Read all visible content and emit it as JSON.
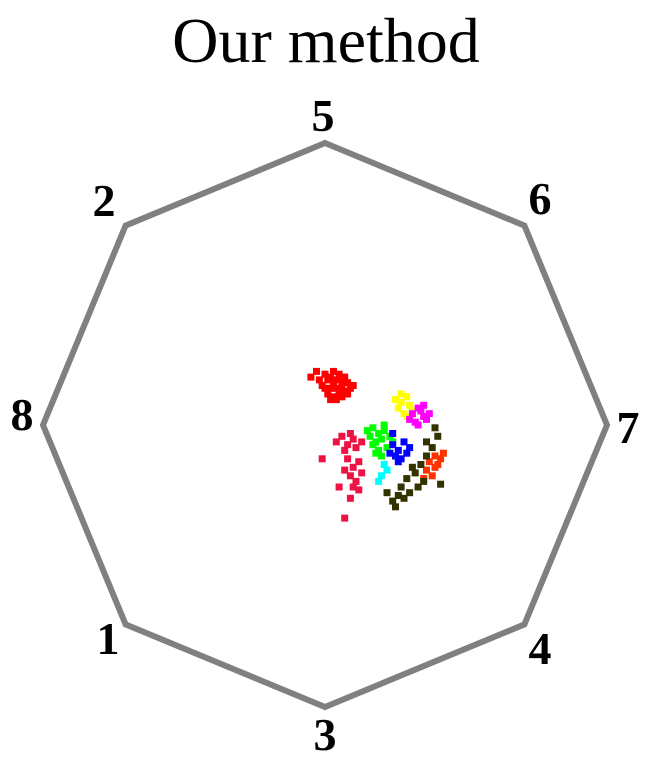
{
  "chart_data": {
    "type": "scatter",
    "title": "Our method",
    "polygon_labels": [
      "5",
      "6",
      "7",
      "4",
      "3",
      "1",
      "8",
      "2"
    ],
    "polygon_color": "#808080",
    "series": [
      {
        "color": "#ff0000",
        "points": [
          [
            0.02,
            0.13
          ],
          [
            0.03,
            0.15
          ],
          [
            0.05,
            0.12
          ],
          [
            0.01,
            0.11
          ],
          [
            0.04,
            0.16
          ],
          [
            0.06,
            0.14
          ],
          [
            0.0,
            0.13
          ],
          [
            0.03,
            0.1
          ],
          [
            0.07,
            0.12
          ],
          [
            0.02,
            0.17
          ],
          [
            -0.01,
            0.14
          ],
          [
            0.05,
            0.18
          ],
          [
            0.08,
            0.15
          ],
          [
            0.04,
            0.09
          ],
          [
            0.06,
            0.1
          ],
          [
            0.01,
            0.16
          ],
          [
            0.09,
            0.13
          ],
          [
            0.03,
            0.19
          ],
          [
            -0.02,
            0.16
          ],
          [
            0.07,
            0.17
          ],
          [
            0.05,
            0.11
          ],
          [
            0.1,
            0.14
          ],
          [
            0.02,
            0.09
          ],
          [
            0.06,
            0.16
          ],
          [
            -0.03,
            0.19
          ],
          [
            -0.05,
            0.17
          ],
          [
            0.04,
            0.13
          ],
          [
            0.08,
            0.11
          ],
          [
            0.0,
            0.18
          ],
          [
            0.03,
            0.14
          ]
        ]
      },
      {
        "color": "#ffff00",
        "points": [
          [
            0.27,
            0.08
          ],
          [
            0.29,
            0.1
          ],
          [
            0.26,
            0.06
          ],
          [
            0.3,
            0.07
          ],
          [
            0.28,
            0.04
          ],
          [
            0.25,
            0.09
          ],
          [
            0.31,
            0.05
          ],
          [
            0.27,
            0.11
          ],
          [
            0.29,
            0.03
          ]
        ]
      },
      {
        "color": "#ff00ff",
        "points": [
          [
            0.31,
            0.04
          ],
          [
            0.33,
            0.06
          ],
          [
            0.35,
            0.03
          ],
          [
            0.32,
            0.01
          ],
          [
            0.34,
            0.05
          ],
          [
            0.36,
            0.02
          ],
          [
            0.3,
            0.02
          ],
          [
            0.33,
            0.0
          ],
          [
            0.35,
            0.07
          ],
          [
            0.37,
            0.04
          ]
        ]
      },
      {
        "color": "#00ff00",
        "points": [
          [
            0.17,
            -0.01
          ],
          [
            0.19,
            -0.03
          ],
          [
            0.21,
            -0.02
          ],
          [
            0.18,
            -0.06
          ],
          [
            0.2,
            -0.05
          ],
          [
            0.22,
            -0.08
          ],
          [
            0.16,
            -0.04
          ],
          [
            0.19,
            -0.09
          ],
          [
            0.23,
            -0.04
          ],
          [
            0.17,
            -0.07
          ],
          [
            0.21,
            0.0
          ],
          [
            0.15,
            -0.02
          ],
          [
            0.24,
            -0.06
          ],
          [
            0.2,
            -0.11
          ],
          [
            0.18,
            -0.1
          ]
        ]
      },
      {
        "color": "#0000ff",
        "points": [
          [
            0.24,
            -0.07
          ],
          [
            0.26,
            -0.09
          ],
          [
            0.28,
            -0.06
          ],
          [
            0.25,
            -0.11
          ],
          [
            0.27,
            -0.12
          ],
          [
            0.29,
            -0.1
          ],
          [
            0.23,
            -0.1
          ],
          [
            0.26,
            -0.13
          ],
          [
            0.3,
            -0.08
          ],
          [
            0.24,
            -0.03
          ]
        ]
      },
      {
        "color": "#00ffff",
        "points": [
          [
            0.21,
            -0.14
          ],
          [
            0.2,
            -0.18
          ],
          [
            0.19,
            -0.2
          ],
          [
            0.22,
            -0.16
          ]
        ]
      },
      {
        "color": "#ff3300",
        "points": [
          [
            0.37,
            -0.13
          ],
          [
            0.39,
            -0.15
          ],
          [
            0.41,
            -0.12
          ],
          [
            0.36,
            -0.16
          ],
          [
            0.38,
            -0.18
          ],
          [
            0.4,
            -0.14
          ],
          [
            0.42,
            -0.1
          ],
          [
            0.35,
            -0.19
          ],
          [
            0.39,
            -0.11
          ]
        ]
      },
      {
        "color": "#333300",
        "points": [
          [
            0.34,
            -0.14
          ],
          [
            0.36,
            -0.11
          ],
          [
            0.32,
            -0.17
          ],
          [
            0.35,
            -0.2
          ],
          [
            0.31,
            -0.15
          ],
          [
            0.29,
            -0.19
          ],
          [
            0.27,
            -0.22
          ],
          [
            0.26,
            -0.25
          ],
          [
            0.24,
            -0.27
          ],
          [
            0.22,
            -0.24
          ],
          [
            0.25,
            -0.29
          ],
          [
            0.28,
            -0.26
          ],
          [
            0.38,
            -0.08
          ],
          [
            0.4,
            -0.04
          ],
          [
            0.39,
            -0.01
          ],
          [
            0.36,
            -0.06
          ],
          [
            0.33,
            -0.22
          ],
          [
            0.3,
            -0.24
          ],
          [
            0.41,
            -0.21
          ]
        ]
      },
      {
        "color": "#ee1144",
        "points": [
          [
            0.04,
            -0.06
          ],
          [
            0.06,
            -0.04
          ],
          [
            0.08,
            -0.07
          ],
          [
            0.1,
            -0.05
          ],
          [
            0.07,
            -0.09
          ],
          [
            0.11,
            -0.08
          ],
          [
            0.09,
            -0.03
          ],
          [
            0.13,
            -0.06
          ],
          [
            0.08,
            -0.12
          ],
          [
            0.1,
            -0.15
          ],
          [
            0.12,
            -0.13
          ],
          [
            0.09,
            -0.18
          ],
          [
            0.11,
            -0.2
          ],
          [
            0.13,
            -0.17
          ],
          [
            0.07,
            -0.16
          ],
          [
            0.12,
            -0.23
          ],
          [
            0.1,
            -0.22
          ],
          [
            -0.01,
            -0.12
          ],
          [
            0.05,
            -0.22
          ],
          [
            0.09,
            -0.26
          ],
          [
            0.07,
            -0.33
          ]
        ]
      }
    ]
  }
}
